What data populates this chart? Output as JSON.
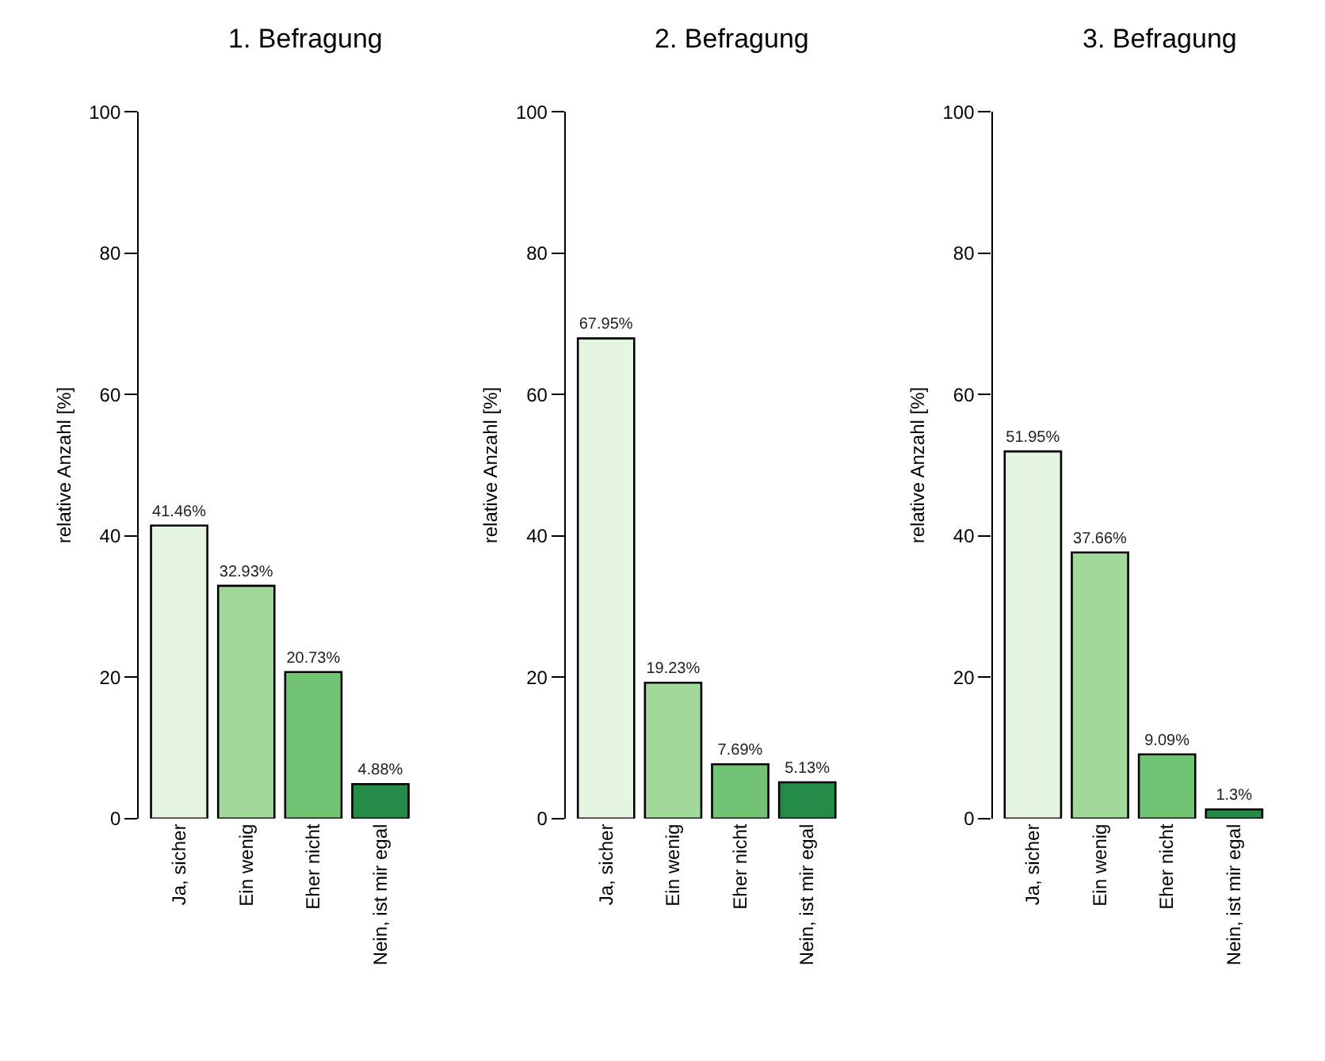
{
  "chart_data": [
    {
      "type": "bar",
      "title": "1. Befragung",
      "ylabel": "relative Anzahl [%]",
      "categories": [
        "Ja, sicher",
        "Ein wenig",
        "Eher nicht",
        "Nein, ist mir egal"
      ],
      "values": [
        41.46,
        32.93,
        20.73,
        4.88
      ],
      "value_labels": [
        "41.46%",
        "32.93%",
        "20.73%",
        "4.88%"
      ],
      "colors": [
        "#e5f5e0",
        "#a1d99b",
        "#74c476",
        "#238b45"
      ],
      "ylim": [
        0,
        100
      ],
      "yticks": [
        0,
        20,
        40,
        60,
        80,
        100
      ],
      "grid": false
    },
    {
      "type": "bar",
      "title": "2. Befragung",
      "ylabel": "relative Anzahl [%]",
      "categories": [
        "Ja, sicher",
        "Ein wenig",
        "Eher nicht",
        "Nein, ist mir egal"
      ],
      "values": [
        67.95,
        19.23,
        7.69,
        5.13
      ],
      "value_labels": [
        "67.95%",
        "19.23%",
        "7.69%",
        "5.13%"
      ],
      "colors": [
        "#e5f5e0",
        "#a1d99b",
        "#74c476",
        "#238b45"
      ],
      "ylim": [
        0,
        100
      ],
      "yticks": [
        0,
        20,
        40,
        60,
        80,
        100
      ],
      "grid": false
    },
    {
      "type": "bar",
      "title": "3. Befragung",
      "ylabel": "relative Anzahl [%]",
      "categories": [
        "Ja, sicher",
        "Ein wenig",
        "Eher nicht",
        "Nein, ist mir egal"
      ],
      "values": [
        51.95,
        37.66,
        9.09,
        1.3
      ],
      "value_labels": [
        "51.95%",
        "37.66%",
        "9.09%",
        "1.3%"
      ],
      "colors": [
        "#e5f5e0",
        "#a1d99b",
        "#74c476",
        "#238b45"
      ],
      "ylim": [
        0,
        100
      ],
      "yticks": [
        0,
        20,
        40,
        60,
        80,
        100
      ],
      "grid": false
    }
  ]
}
